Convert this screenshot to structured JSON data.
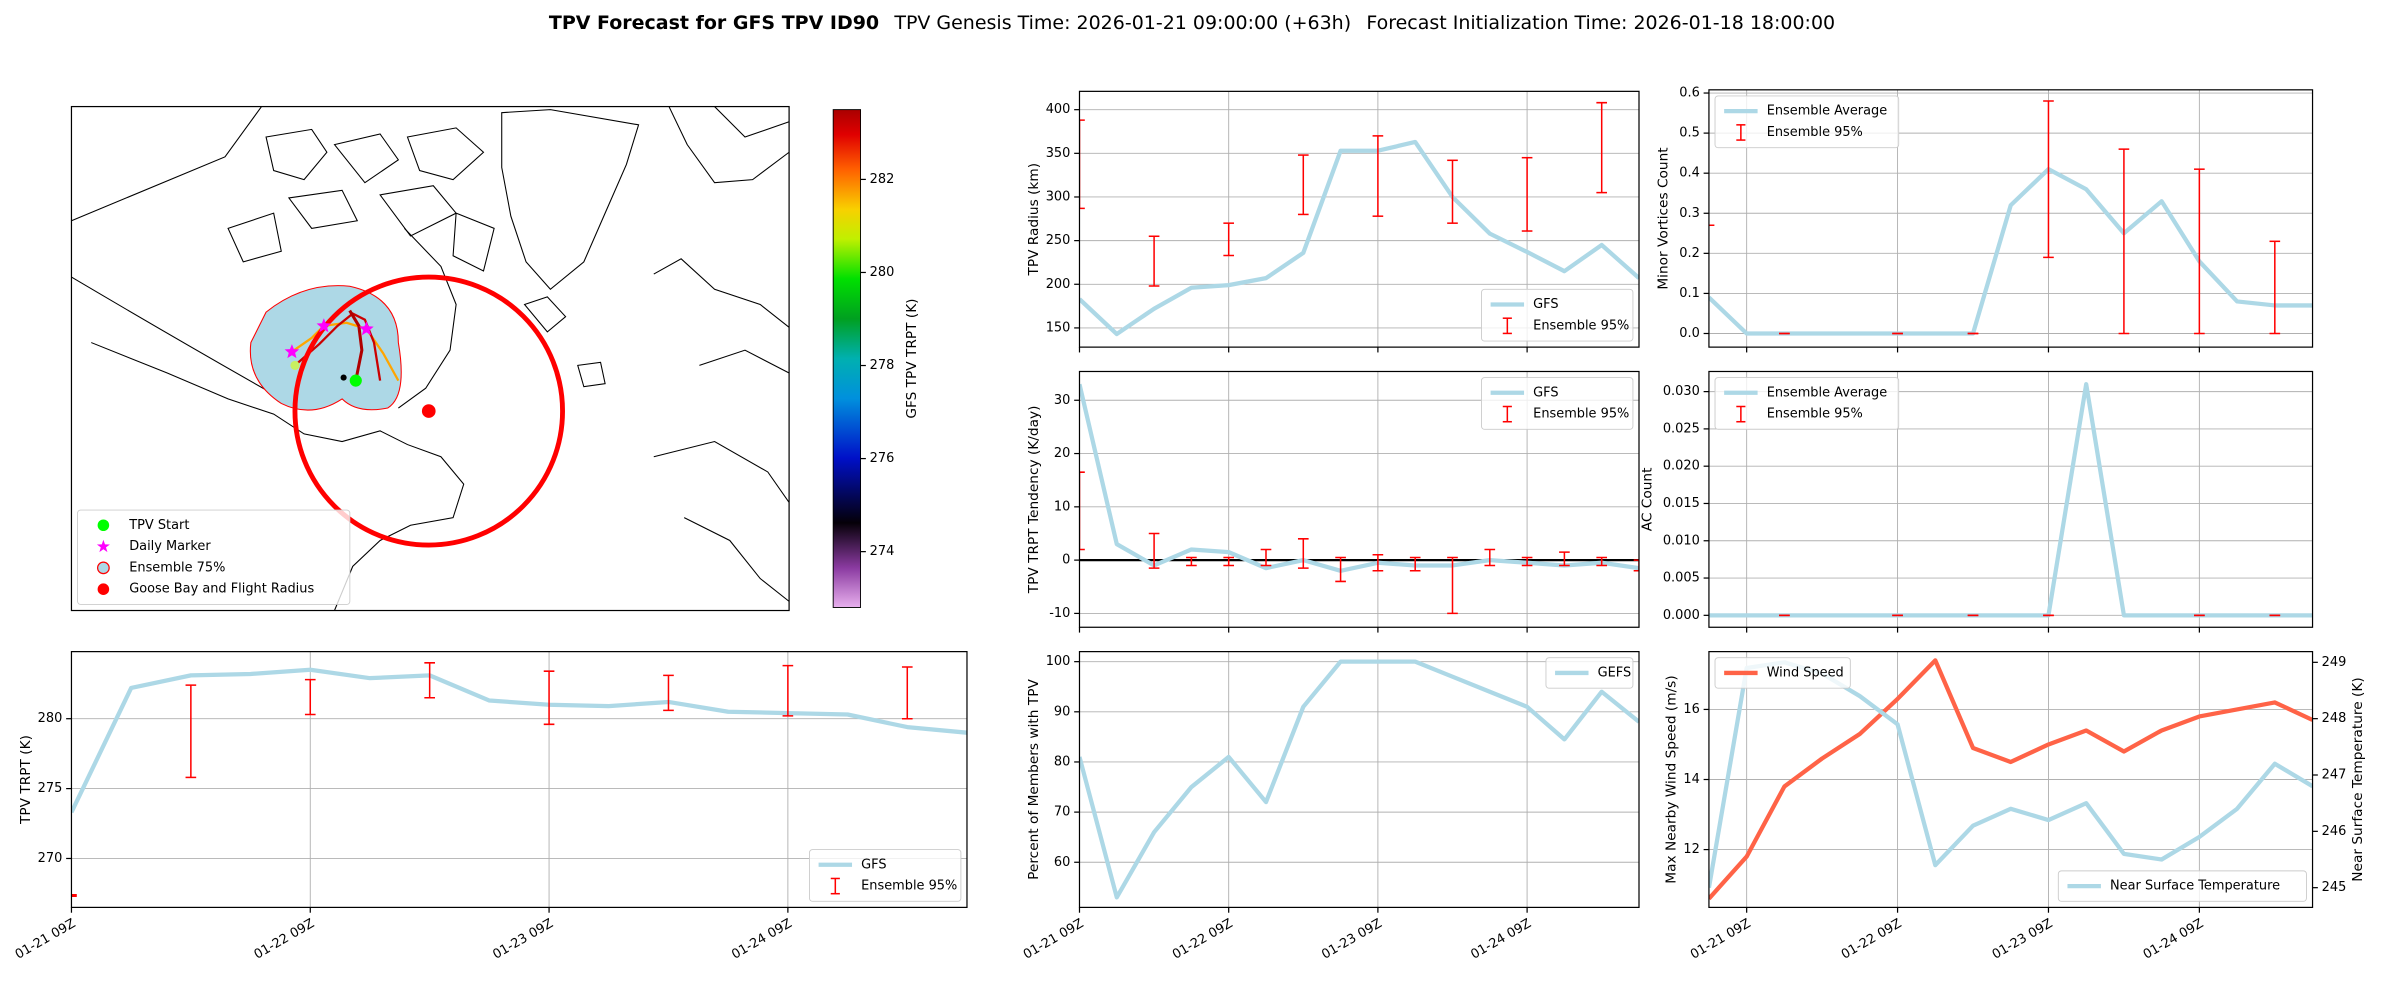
{
  "title": "TPV Forecast for GFS TPV ID90",
  "subtitle": [
    "TPV Genesis Time: 2026-01-21 09:00:00 (+63h)",
    "Forecast Initialization Time: 2026-01-18 18:00:00"
  ],
  "chart_data": [
    {
      "type": "map",
      "legend": "lower left",
      "series": [
        {
          "name": "TPV Start",
          "color": "#00ff00",
          "marker": "circle"
        },
        {
          "name": "Daily Marker",
          "color": "#ff00ff",
          "marker": "star"
        },
        {
          "name": "Ensemble 75%",
          "color": "#add8e6",
          "edgecolor": "#ff0000",
          "marker": "circle"
        },
        {
          "name": "Goose Bay and Flight Radius",
          "color": "#ff0000",
          "marker": "circle"
        }
      ],
      "colorbar": {
        "label": "GFS TPV TRPT (K)",
        "lim": [
          272.8,
          283.5
        ],
        "ticks": [
          274,
          276,
          278,
          280,
          282
        ]
      }
    },
    {
      "type": "line",
      "ylabel": "TPV Radius (km)",
      "grid": true,
      "legend": "lower right",
      "xlim": [
        "01-21 09Z",
        "01-25 03Z"
      ],
      "xticks": [
        "01-21 09Z",
        "01-22 09Z",
        "01-23 09Z",
        "01-24 09Z"
      ],
      "ylim": [
        128,
        421
      ],
      "yticks": [
        150,
        200,
        250,
        300,
        350,
        400
      ],
      "x": [
        "01-21 09Z",
        "01-21 15Z",
        "01-21 21Z",
        "01-22 03Z",
        "01-22 09Z",
        "01-22 15Z",
        "01-22 21Z",
        "01-23 03Z",
        "01-23 09Z",
        "01-23 15Z",
        "01-23 21Z",
        "01-24 03Z",
        "01-24 09Z",
        "01-24 15Z",
        "01-24 21Z",
        "01-25 03Z"
      ],
      "series": [
        {
          "name": "GFS",
          "color": "#add8e6",
          "values": [
            183,
            143,
            172,
            196,
            199,
            207,
            236,
            353,
            353,
            363,
            300,
            258,
            237,
            215,
            245,
            207
          ]
        },
        {
          "name": "Ensemble 95%",
          "type": "errorbar",
          "color": "#ff0000",
          "x": [
            "01-21 09Z",
            "01-21 21Z",
            "01-22 09Z",
            "01-22 21Z",
            "01-23 09Z",
            "01-23 21Z",
            "01-24 09Z",
            "01-24 21Z"
          ],
          "low": [
            287,
            198,
            233,
            280,
            278,
            270,
            261,
            305
          ],
          "high": [
            388,
            255,
            270,
            348,
            370,
            342,
            345,
            408
          ]
        }
      ]
    },
    {
      "type": "line",
      "ylabel": "Minor Vortices Count",
      "grid": true,
      "legend": "upper left",
      "xlim": [
        "01-21 03Z",
        "01-25 03Z"
      ],
      "xticks": [
        "01-21 09Z",
        "01-22 09Z",
        "01-23 09Z",
        "01-24 09Z"
      ],
      "ylim": [
        -0.034,
        0.608
      ],
      "yticks": [
        {
          "value": 0,
          "label": "0.0"
        },
        0.1,
        0.2,
        0.3,
        0.4,
        0.5,
        0.6
      ],
      "x": [
        "01-21 03Z",
        "01-21 09Z",
        "01-21 15Z",
        "01-21 21Z",
        "01-22 03Z",
        "01-22 09Z",
        "01-22 15Z",
        "01-22 21Z",
        "01-23 03Z",
        "01-23 09Z",
        "01-23 15Z",
        "01-23 21Z",
        "01-24 03Z",
        "01-24 09Z",
        "01-24 15Z",
        "01-24 21Z",
        "01-25 03Z"
      ],
      "series": [
        {
          "name": "Ensemble Average",
          "color": "#add8e6",
          "values": [
            0.09,
            0,
            0,
            0,
            0,
            0,
            0,
            0,
            0.32,
            0.41,
            0.36,
            0.25,
            0.33,
            0.18,
            0.08,
            0.07,
            0.07
          ]
        },
        {
          "name": "Ensemble 95%",
          "type": "errorbar",
          "color": "#ff0000",
          "x": [
            "01-21 03Z",
            "01-21 15Z",
            "01-22 09Z",
            "01-22 21Z",
            "01-23 09Z",
            "01-23 21Z",
            "01-24 09Z",
            "01-24 21Z"
          ],
          "low": [
            0.27,
            0,
            0,
            0,
            0.19,
            0,
            0,
            0
          ],
          "high": [
            0.27,
            0,
            0,
            0,
            0.58,
            0.46,
            0.41,
            0.23
          ]
        }
      ]
    },
    {
      "type": "line",
      "ylabel": "TPV TRPT Tendency (K/day)",
      "grid": true,
      "legend": "upper right",
      "hline": 0,
      "xlim": [
        "01-21 09Z",
        "01-25 03Z"
      ],
      "xticks": [
        "01-21 09Z",
        "01-22 09Z",
        "01-23 09Z",
        "01-24 09Z"
      ],
      "ylim": [
        -12.6,
        35.4
      ],
      "yticks": [
        -10,
        0,
        10,
        20,
        30
      ],
      "x": [
        "01-21 09Z",
        "01-21 15Z",
        "01-21 21Z",
        "01-22 03Z",
        "01-22 09Z",
        "01-22 15Z",
        "01-22 21Z",
        "01-23 03Z",
        "01-23 09Z",
        "01-23 15Z",
        "01-23 21Z",
        "01-24 03Z",
        "01-24 09Z",
        "01-24 15Z",
        "01-24 21Z",
        "01-25 03Z"
      ],
      "series": [
        {
          "name": "GFS",
          "color": "#add8e6",
          "values": [
            33,
            3,
            -1,
            2,
            1.5,
            -1.5,
            0,
            -2,
            -0.5,
            -1,
            -1,
            0,
            -0.5,
            -1,
            -0.5,
            -1.5
          ]
        },
        {
          "name": "Ensemble 95%",
          "type": "errorbar",
          "color": "#ff0000",
          "x": [
            "01-21 09Z",
            "01-21 21Z",
            "01-22 03Z",
            "01-22 09Z",
            "01-22 15Z",
            "01-22 21Z",
            "01-23 03Z",
            "01-23 09Z",
            "01-23 15Z",
            "01-23 21Z",
            "01-24 03Z",
            "01-24 09Z",
            "01-24 15Z",
            "01-24 21Z",
            "01-25 03Z"
          ],
          "low": [
            2,
            -1.5,
            -1,
            -1,
            -1,
            -1.5,
            -4,
            -2,
            -2,
            -10,
            -1,
            -1,
            -1,
            -1,
            -2
          ],
          "high": [
            16.5,
            5,
            0.5,
            0.5,
            2,
            4,
            0.5,
            1,
            0.5,
            0.5,
            2,
            0.5,
            1.5,
            0.5,
            0
          ]
        }
      ]
    },
    {
      "type": "line",
      "ylabel": "AC Count",
      "grid": true,
      "legend": "upper left",
      "xlim": [
        "01-21 03Z",
        "01-25 03Z"
      ],
      "xticks": [
        "01-21 09Z",
        "01-22 09Z",
        "01-23 09Z",
        "01-24 09Z"
      ],
      "ylim": [
        -0.0016,
        0.0327
      ],
      "yticks": [
        {
          "value": 0,
          "label": "0.000"
        },
        {
          "value": 0.005,
          "label": "0.005"
        },
        {
          "value": 0.01,
          "label": "0.010"
        },
        {
          "value": 0.015,
          "label": "0.015"
        },
        {
          "value": 0.02,
          "label": "0.020"
        },
        {
          "value": 0.025,
          "label": "0.025"
        },
        {
          "value": 0.03,
          "label": "0.030"
        }
      ],
      "x": [
        "01-21 03Z",
        "01-21 09Z",
        "01-21 15Z",
        "01-21 21Z",
        "01-22 03Z",
        "01-22 09Z",
        "01-22 15Z",
        "01-22 21Z",
        "01-23 03Z",
        "01-23 09Z",
        "01-23 15Z",
        "01-23 21Z",
        "01-24 03Z",
        "01-24 09Z",
        "01-24 15Z",
        "01-24 21Z",
        "01-25 03Z"
      ],
      "series": [
        {
          "name": "Ensemble Average",
          "color": "#add8e6",
          "values": [
            0,
            0,
            0,
            0,
            0,
            0,
            0,
            0,
            0,
            0,
            0.031,
            0,
            0,
            0,
            0,
            0,
            0
          ]
        },
        {
          "name": "Ensemble 95%",
          "type": "errorbar",
          "color": "#ff0000",
          "x": [
            "01-21 15Z",
            "01-22 09Z",
            "01-22 21Z",
            "01-23 09Z",
            "01-24 09Z",
            "01-24 21Z"
          ],
          "low": [
            0,
            0,
            0,
            0,
            0,
            0
          ],
          "high": [
            0,
            0,
            0,
            0,
            0,
            0
          ]
        }
      ]
    },
    {
      "type": "line",
      "ylabel": "TPV TRPT (K)",
      "grid": true,
      "legend": "lower right",
      "xlim": [
        "01-21 09Z",
        "01-25 03Z"
      ],
      "xticks": [
        {
          "value": "01-21 09Z",
          "label": "01-21 09Z"
        },
        {
          "value": "01-22 09Z",
          "label": "01-22 09Z"
        },
        {
          "value": "01-23 09Z",
          "label": "01-23 09Z"
        },
        {
          "value": "01-24 09Z",
          "label": "01-24 09Z"
        }
      ],
      "ylim": [
        266.5,
        284.8
      ],
      "yticks": [
        270,
        275,
        280
      ],
      "x": [
        "01-21 09Z",
        "01-21 15Z",
        "01-21 21Z",
        "01-22 03Z",
        "01-22 09Z",
        "01-22 15Z",
        "01-22 21Z",
        "01-23 03Z",
        "01-23 09Z",
        "01-23 15Z",
        "01-23 21Z",
        "01-24 03Z",
        "01-24 09Z",
        "01-24 15Z",
        "01-24 21Z",
        "01-25 03Z"
      ],
      "series": [
        {
          "name": "GFS",
          "color": "#add8e6",
          "values": [
            273.3,
            282.2,
            283.1,
            283.2,
            283.5,
            282.9,
            283.1,
            281.3,
            281.0,
            280.9,
            281.2,
            280.5,
            280.4,
            280.3,
            279.4,
            279.0
          ]
        },
        {
          "name": "Ensemble 95%",
          "type": "errorbar",
          "color": "#ff0000",
          "x": [
            "01-21 09Z",
            "01-21 21Z",
            "01-22 09Z",
            "01-22 21Z",
            "01-23 09Z",
            "01-23 21Z",
            "01-24 09Z",
            "01-24 21Z"
          ],
          "low": [
            267.3,
            275.8,
            280.3,
            281.5,
            279.6,
            280.6,
            280.2,
            280.0
          ],
          "high": [
            267.4,
            282.4,
            282.8,
            284.0,
            283.4,
            283.1,
            283.8,
            283.7
          ]
        }
      ]
    },
    {
      "type": "line",
      "ylabel": "Percent of Members with TPV",
      "grid": true,
      "legend": "upper right",
      "xlim": [
        "01-21 09Z",
        "01-25 03Z"
      ],
      "xticks": [
        {
          "value": "01-21 09Z",
          "label": "01-21 09Z"
        },
        {
          "value": "01-22 09Z",
          "label": "01-22 09Z"
        },
        {
          "value": "01-23 09Z",
          "label": "01-23 09Z"
        },
        {
          "value": "01-24 09Z",
          "label": "01-24 09Z"
        }
      ],
      "ylim": [
        51,
        102
      ],
      "yticks": [
        60,
        70,
        80,
        90,
        100
      ],
      "x": [
        "01-21 09Z",
        "01-21 15Z",
        "01-21 21Z",
        "01-22 03Z",
        "01-22 09Z",
        "01-22 15Z",
        "01-22 21Z",
        "01-23 03Z",
        "01-23 09Z",
        "01-23 15Z",
        "01-23 21Z",
        "01-24 03Z",
        "01-24 09Z",
        "01-24 15Z",
        "01-24 21Z",
        "01-25 03Z"
      ],
      "series": [
        {
          "name": "GEFS",
          "color": "#add8e6",
          "values": [
            81,
            53,
            66,
            75,
            81,
            72,
            91,
            100,
            100,
            100,
            97,
            94,
            91,
            84.5,
            94,
            88
          ]
        }
      ]
    },
    {
      "type": "line",
      "ylabel": "Max Nearby Wind Speed (m/s)",
      "ylabel_color": "#ff6347",
      "y2label": "Near Surface Temperature (K)",
      "y2label_color": "#4169e1",
      "grid": true,
      "xlim": [
        "01-21 03Z",
        "01-25 03Z"
      ],
      "xticks": [
        {
          "value": "01-21 09Z",
          "label": "01-21 09Z"
        },
        {
          "value": "01-22 09Z",
          "label": "01-22 09Z"
        },
        {
          "value": "01-23 09Z",
          "label": "01-23 09Z"
        },
        {
          "value": "01-24 09Z",
          "label": "01-24 09Z"
        }
      ],
      "ylim": [
        10.35,
        17.65
      ],
      "yticks": [
        12,
        14,
        16
      ],
      "y2lim": [
        244.65,
        249.19
      ],
      "y2ticks": [
        245,
        246,
        247,
        248,
        249
      ],
      "x": [
        "01-21 03Z",
        "01-21 09Z",
        "01-21 15Z",
        "01-21 21Z",
        "01-22 03Z",
        "01-22 09Z",
        "01-22 15Z",
        "01-22 21Z",
        "01-23 03Z",
        "01-23 09Z",
        "01-23 15Z",
        "01-23 21Z",
        "01-24 03Z",
        "01-24 09Z",
        "01-24 15Z",
        "01-24 21Z",
        "01-25 03Z"
      ],
      "series": [
        {
          "name": "Wind Speed",
          "color": "#ff6347",
          "legend": "upper left",
          "values": [
            10.6,
            11.8,
            13.8,
            14.6,
            15.3,
            16.3,
            17.4,
            14.9,
            14.5,
            15.0,
            15.4,
            14.8,
            15.4,
            15.8,
            16.0,
            16.2,
            15.7
          ]
        },
        {
          "name": "Near Surface Temperature",
          "color": "#add8e6",
          "axis": "y2",
          "legend": "lower right",
          "values": [
            245.0,
            248.9,
            249.0,
            248.8,
            248.4,
            247.9,
            245.4,
            246.1,
            246.4,
            246.2,
            246.5,
            245.6,
            245.5,
            245.9,
            246.4,
            247.2,
            246.8
          ]
        }
      ]
    }
  ]
}
